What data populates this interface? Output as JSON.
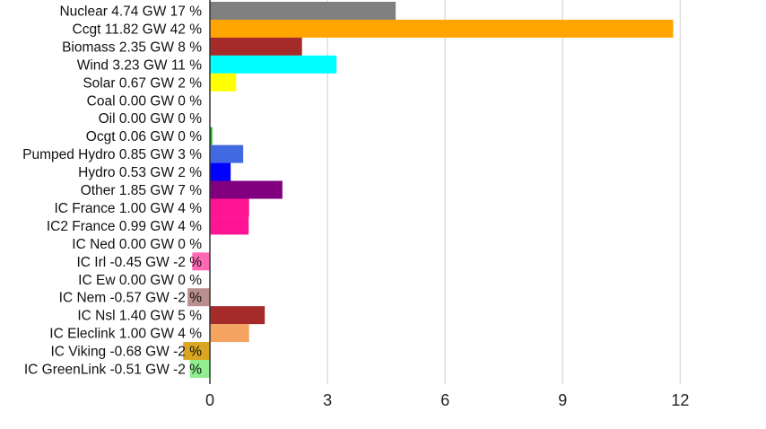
{
  "chart_data": {
    "type": "bar",
    "orientation": "horizontal",
    "categories": [
      "Nuclear 4.74 GW 17 %",
      "Ccgt 11.82 GW 42 %",
      "Biomass 2.35 GW 8 %",
      "Wind 3.23 GW 11 %",
      "Solar 0.67 GW 2 %",
      "Coal 0.00 GW 0 %",
      "Oil 0.00 GW 0 %",
      "Ocgt 0.06 GW 0 %",
      "Pumped Hydro 0.85 GW 3 %",
      "Hydro 0.53 GW 2 %",
      "Other 1.85 GW 7 %",
      "IC France 1.00 GW 4 %",
      "IC2 France 0.99 GW 4 %",
      "IC Ned 0.00 GW 0 %",
      "IC Irl -0.45 GW -2 %",
      "IC Ew 0.00 GW 0 %",
      "IC Nem -0.57 GW -2 %",
      "IC Nsl 1.40 GW 5 %",
      "IC Eleclink 1.00 GW 4 %",
      "IC Viking -0.68 GW -2 %",
      "IC GreenLink -0.51 GW -2 %"
    ],
    "values": [
      4.74,
      11.82,
      2.35,
      3.23,
      0.67,
      0.0,
      0.0,
      0.06,
      0.85,
      0.53,
      1.85,
      1.0,
      0.99,
      0.0,
      -0.45,
      0.0,
      -0.57,
      1.4,
      1.0,
      -0.68,
      -0.51
    ],
    "colors": [
      "#808080",
      "#ffa500",
      "#a52a2a",
      "#00ffff",
      "#ffff00",
      "#000000",
      "#000000",
      "#00c000",
      "#4169e1",
      "#0000ff",
      "#800080",
      "#ff1493",
      "#ff1493",
      "#ff6600",
      "#ff69b4",
      "#c0c0c0",
      "#bc8f8f",
      "#a52a2a",
      "#f4a460",
      "#daa520",
      "#90ee90"
    ],
    "xticks": [
      "0",
      "3",
      "6",
      "9",
      "12"
    ],
    "xlim": [
      0,
      14
    ],
    "grid": "vertical"
  }
}
